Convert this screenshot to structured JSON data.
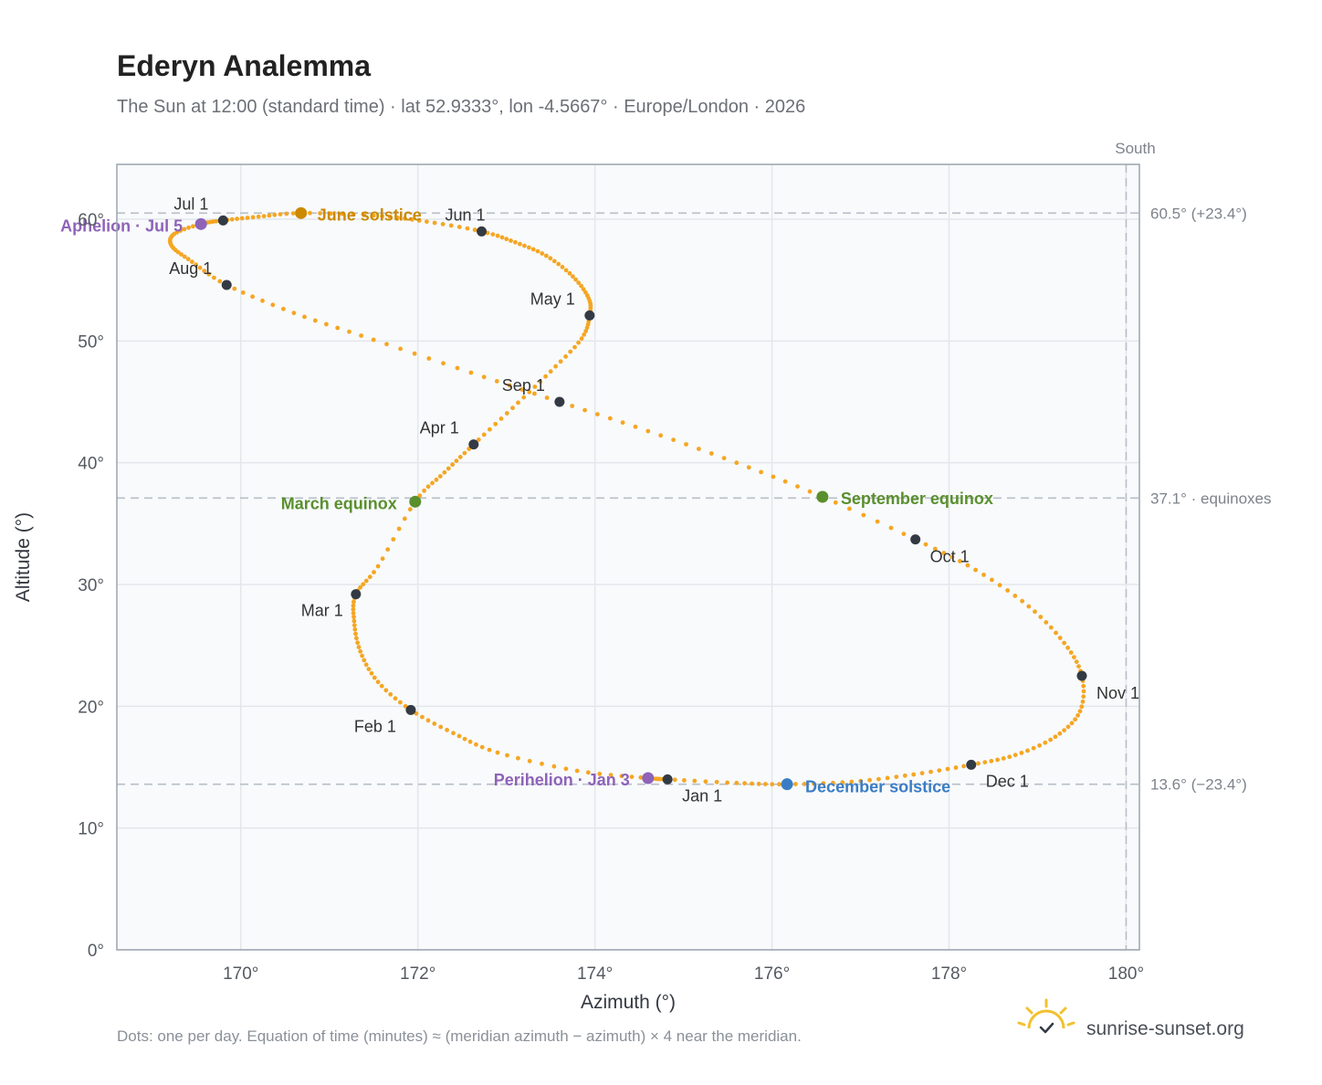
{
  "title": "Ederyn Analemma",
  "subtitle": "The Sun at 12:00 (standard time) · lat 52.9333°, lon -4.5667° · Europe/London · 2026",
  "footnote": "Dots: one per day. Equation of time (minutes) ≈ (meridian azimuth − azimuth) × 4 near the meridian.",
  "brand": "sunrise-sunset.org",
  "colors": {
    "path": "#f5a623",
    "month_marker": "#333a44",
    "june_solstice": "#cc8a00",
    "december_solstice": "#3b7dc4",
    "equinox": "#5a8f2e",
    "apsis": "#8e63b8",
    "grid": "#e3e7eb",
    "plot_bg": "#f8fafc",
    "reference_line": "#b8bfc7",
    "brand_sun": "#f2c12e"
  },
  "chart_data": {
    "type": "scatter",
    "xlabel": "Azimuth (°)",
    "ylabel": "Altitude (°)",
    "xlim": [
      168.6,
      180.15
    ],
    "ylim": [
      0,
      64.5
    ],
    "x_ticks": [
      "170°",
      "172°",
      "174°",
      "176°",
      "178°",
      "180°"
    ],
    "x_tick_values": [
      170,
      172,
      174,
      176,
      178,
      180
    ],
    "y_ticks": [
      "0°",
      "10°",
      "20°",
      "30°",
      "40°",
      "50°",
      "60°"
    ],
    "y_tick_values": [
      0,
      10,
      20,
      30,
      40,
      50,
      60
    ],
    "grid": true,
    "reference_lines": [
      {
        "axis": "y",
        "value": 60.5,
        "label": "60.5° (+23.4°)"
      },
      {
        "axis": "y",
        "value": 37.1,
        "label": "37.1° · equinoxes"
      },
      {
        "axis": "y",
        "value": 13.6,
        "label": "13.6° (−23.4°)"
      },
      {
        "axis": "x",
        "value": 180,
        "label": "South"
      }
    ],
    "month_markers": [
      {
        "label": "Jan 1",
        "azimuth": 174.82,
        "altitude": 14.0
      },
      {
        "label": "Feb 1",
        "azimuth": 171.92,
        "altitude": 19.7
      },
      {
        "label": "Mar 1",
        "azimuth": 171.3,
        "altitude": 29.2
      },
      {
        "label": "Apr 1",
        "azimuth": 172.63,
        "altitude": 41.5
      },
      {
        "label": "May 1",
        "azimuth": 173.94,
        "altitude": 52.1
      },
      {
        "label": "Jun 1",
        "azimuth": 172.72,
        "altitude": 59.0
      },
      {
        "label": "Jul 1",
        "azimuth": 169.8,
        "altitude": 59.9
      },
      {
        "label": "Aug 1",
        "azimuth": 169.84,
        "altitude": 54.6
      },
      {
        "label": "Sep 1",
        "azimuth": 173.6,
        "altitude": 45.0
      },
      {
        "label": "Oct 1",
        "azimuth": 177.62,
        "altitude": 33.7
      },
      {
        "label": "Nov 1",
        "azimuth": 179.5,
        "altitude": 22.5
      },
      {
        "label": "Dec 1",
        "azimuth": 178.25,
        "altitude": 15.2
      }
    ],
    "events": [
      {
        "label": "June solstice",
        "type": "june_solstice",
        "azimuth": 170.68,
        "altitude": 60.5
      },
      {
        "label": "December solstice",
        "type": "december_solstice",
        "azimuth": 176.17,
        "altitude": 13.6
      },
      {
        "label": "March equinox",
        "type": "equinox",
        "azimuth": 171.97,
        "altitude": 36.8
      },
      {
        "label": "September equinox",
        "type": "equinox",
        "azimuth": 176.57,
        "altitude": 37.2
      },
      {
        "label": "Aphelion · Jul 5",
        "type": "apsis",
        "azimuth": 169.55,
        "altitude": 59.6
      },
      {
        "label": "Perihelion · Jan 3",
        "type": "apsis",
        "azimuth": 174.6,
        "altitude": 14.1
      }
    ],
    "daily_path": [
      [
        174.82,
        14.0
      ],
      [
        174.6,
        14.1
      ],
      [
        173.8,
        14.7
      ],
      [
        172.9,
        16.2
      ],
      [
        172.4,
        17.8
      ],
      [
        171.92,
        19.7
      ],
      [
        171.55,
        22.0
      ],
      [
        171.35,
        24.5
      ],
      [
        171.28,
        27.0
      ],
      [
        171.3,
        29.2
      ],
      [
        171.55,
        31.5
      ],
      [
        171.97,
        36.8
      ],
      [
        172.3,
        39.2
      ],
      [
        172.63,
        41.5
      ],
      [
        173.07,
        44.5
      ],
      [
        173.5,
        47.5
      ],
      [
        173.85,
        50.2
      ],
      [
        173.94,
        52.1
      ],
      [
        173.93,
        53.5
      ],
      [
        173.75,
        55.3
      ],
      [
        173.45,
        57.0
      ],
      [
        173.1,
        58.1
      ],
      [
        172.72,
        59.0
      ],
      [
        172.1,
        59.8
      ],
      [
        171.5,
        60.3
      ],
      [
        170.68,
        60.5
      ],
      [
        170.2,
        60.2
      ],
      [
        169.8,
        59.9
      ],
      [
        169.55,
        59.6
      ],
      [
        169.25,
        58.8
      ],
      [
        169.22,
        57.8
      ],
      [
        169.45,
        56.5
      ],
      [
        169.84,
        54.6
      ],
      [
        170.6,
        52.3
      ],
      [
        171.5,
        50.1
      ],
      [
        172.6,
        47.4
      ],
      [
        173.6,
        45.0
      ],
      [
        174.6,
        42.6
      ],
      [
        175.6,
        40.0
      ],
      [
        176.57,
        37.2
      ],
      [
        177.62,
        33.7
      ],
      [
        178.3,
        31.2
      ],
      [
        178.9,
        28.2
      ],
      [
        179.3,
        25.2
      ],
      [
        179.5,
        22.5
      ],
      [
        179.48,
        19.6
      ],
      [
        179.2,
        17.5
      ],
      [
        178.75,
        16.0
      ],
      [
        178.25,
        15.2
      ],
      [
        177.6,
        14.4
      ],
      [
        176.9,
        13.8
      ],
      [
        176.17,
        13.6
      ],
      [
        175.6,
        13.7
      ],
      [
        174.82,
        14.0
      ]
    ]
  }
}
